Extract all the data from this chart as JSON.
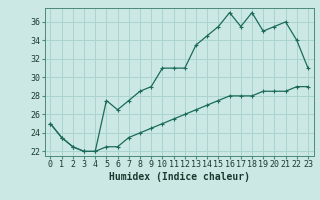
{
  "title": "",
  "xlabel": "Humidex (Indice chaleur)",
  "background_color": "#cce8e4",
  "grid_color": "#aad4d0",
  "line_color": "#1a6b5a",
  "x_upper": [
    0,
    1,
    2,
    3,
    4,
    5,
    6,
    7,
    8,
    9,
    10,
    11,
    12,
    13,
    14,
    15,
    16,
    17,
    18,
    19,
    20,
    21,
    22,
    23
  ],
  "y_upper": [
    25.0,
    23.5,
    22.5,
    22.0,
    22.0,
    27.5,
    26.5,
    27.5,
    28.5,
    29.0,
    31.0,
    31.0,
    31.0,
    33.5,
    34.5,
    35.5,
    37.0,
    35.5,
    37.0,
    35.0,
    35.5,
    36.0,
    34.0,
    31.0
  ],
  "x_lower": [
    0,
    1,
    2,
    3,
    4,
    5,
    6,
    7,
    8,
    9,
    10,
    11,
    12,
    13,
    14,
    15,
    16,
    17,
    18,
    19,
    20,
    21,
    22,
    23
  ],
  "y_lower": [
    25.0,
    23.5,
    22.5,
    22.0,
    22.0,
    22.5,
    22.5,
    23.5,
    24.0,
    24.5,
    25.0,
    25.5,
    26.0,
    26.5,
    27.0,
    27.5,
    28.0,
    28.0,
    28.0,
    28.5,
    28.5,
    28.5,
    29.0,
    29.0
  ],
  "xlim": [
    -0.5,
    23.5
  ],
  "ylim": [
    21.5,
    37.5
  ],
  "yticks": [
    22,
    24,
    26,
    28,
    30,
    32,
    34,
    36
  ],
  "xticks": [
    0,
    1,
    2,
    3,
    4,
    5,
    6,
    7,
    8,
    9,
    10,
    11,
    12,
    13,
    14,
    15,
    16,
    17,
    18,
    19,
    20,
    21,
    22,
    23
  ],
  "marker": "+",
  "markersize": 3,
  "linewidth": 0.9,
  "xlabel_fontsize": 7,
  "tick_fontsize": 6
}
